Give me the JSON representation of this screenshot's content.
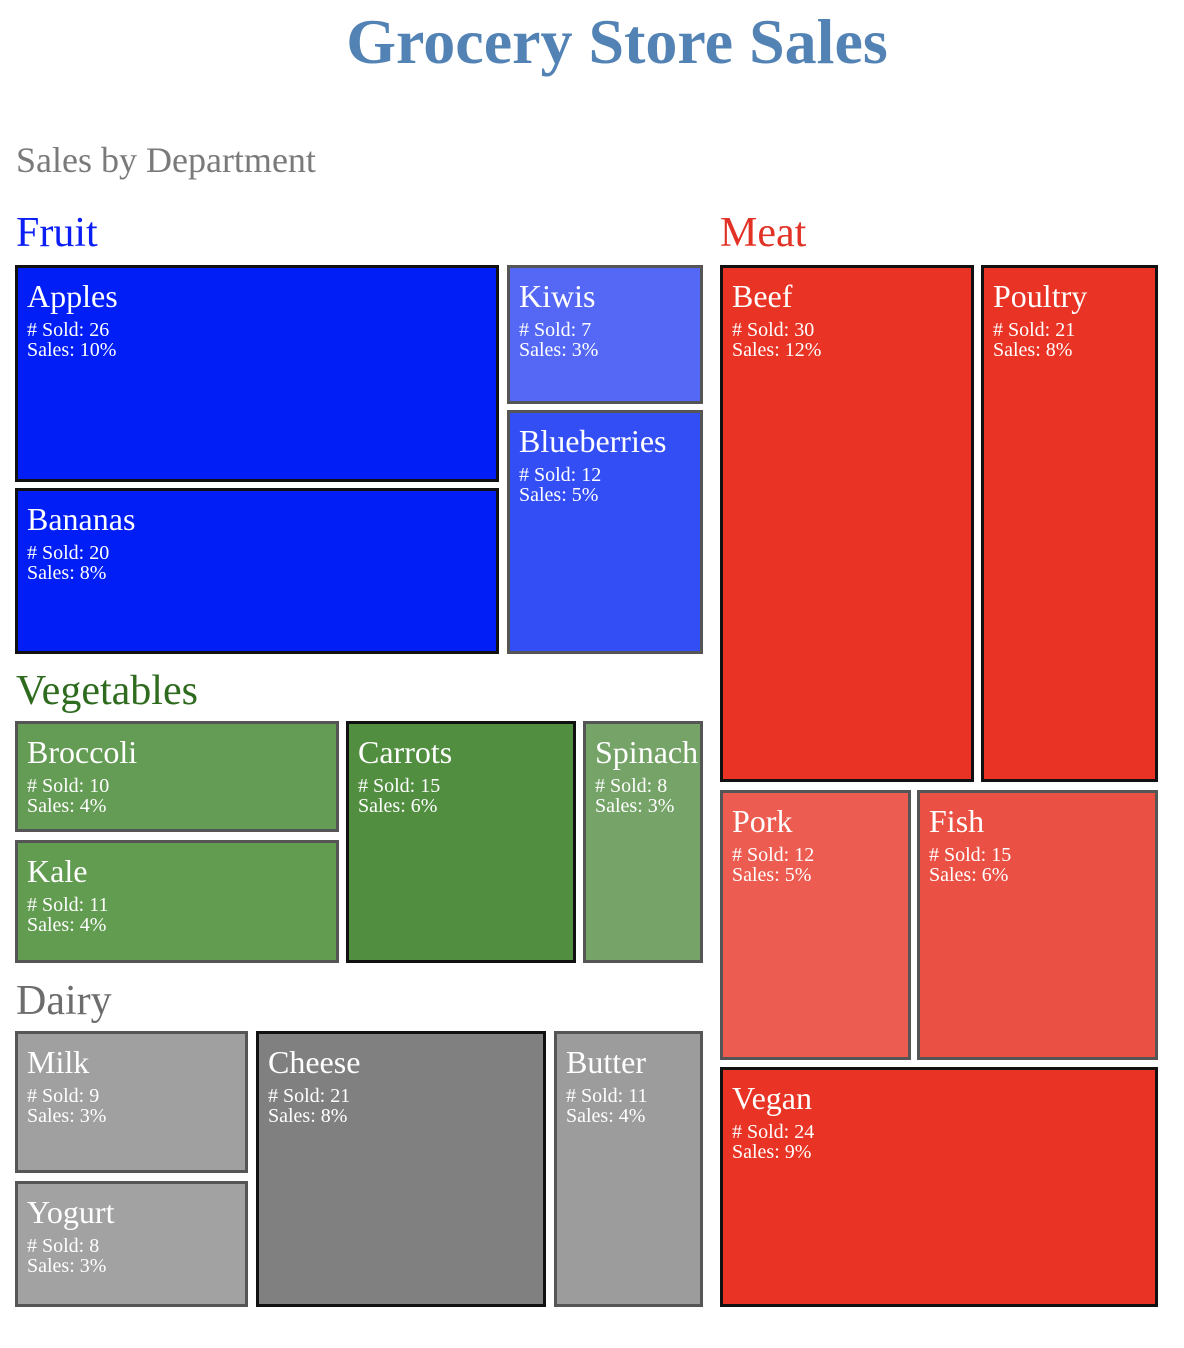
{
  "title": "Grocery Store Sales",
  "subtitle": "Sales by Department",
  "chart_data": {
    "type": "treemap",
    "title": "Grocery Store Sales",
    "subtitle": "Sales by Department",
    "groups": [
      {
        "name": "Fruit",
        "color": "#0a1ef5",
        "items": [
          {
            "name": "Apples",
            "sold": 26,
            "sales_pct": 10,
            "sold_label": "# Sold: 26",
            "sales_label": "Sales: 10%",
            "color": "#001ef5"
          },
          {
            "name": "Bananas",
            "sold": 20,
            "sales_pct": 8,
            "sold_label": "# Sold: 20",
            "sales_label": "Sales: 8%",
            "color": "#001ef5"
          },
          {
            "name": "Kiwis",
            "sold": 7,
            "sales_pct": 3,
            "sold_label": "# Sold: 7",
            "sales_label": "Sales: 3%",
            "color": "#5468f5"
          },
          {
            "name": "Blueberries",
            "sold": 12,
            "sales_pct": 5,
            "sold_label": "# Sold: 12",
            "sales_label": "Sales: 5%",
            "color": "#334ef5"
          }
        ]
      },
      {
        "name": "Vegetables",
        "color": "#2f6b1e",
        "items": [
          {
            "name": "Broccoli",
            "sold": 10,
            "sales_pct": 4,
            "sold_label": "# Sold: 10",
            "sales_label": "Sales: 4%",
            "color": "#659c55"
          },
          {
            "name": "Kale",
            "sold": 11,
            "sales_pct": 4,
            "sold_label": "# Sold: 11",
            "sales_label": "Sales: 4%",
            "color": "#629c50"
          },
          {
            "name": "Carrots",
            "sold": 15,
            "sales_pct": 6,
            "sold_label": "# Sold: 15",
            "sales_label": "Sales: 6%",
            "color": "#518e40"
          },
          {
            "name": "Spinach",
            "sold": 8,
            "sales_pct": 3,
            "sold_label": "# Sold: 8",
            "sales_label": "Sales: 3%",
            "color": "#76a468"
          }
        ]
      },
      {
        "name": "Dairy",
        "color": "#6d6d6d",
        "items": [
          {
            "name": "Milk",
            "sold": 9,
            "sales_pct": 3,
            "sold_label": "# Sold: 9",
            "sales_label": "Sales: 3%",
            "color": "#a0a0a0"
          },
          {
            "name": "Yogurt",
            "sold": 8,
            "sales_pct": 3,
            "sold_label": "# Sold: 8",
            "sales_label": "Sales: 3%",
            "color": "#a2a2a2"
          },
          {
            "name": "Cheese",
            "sold": 21,
            "sales_pct": 8,
            "sold_label": "# Sold: 21",
            "sales_label": "Sales: 8%",
            "color": "#808080"
          },
          {
            "name": "Butter",
            "sold": 11,
            "sales_pct": 4,
            "sold_label": "# Sold: 11",
            "sales_label": "Sales: 4%",
            "color": "#9c9c9c"
          }
        ]
      },
      {
        "name": "Meat",
        "color": "#e23226",
        "items": [
          {
            "name": "Beef",
            "sold": 30,
            "sales_pct": 12,
            "sold_label": "# Sold: 30",
            "sales_label": "Sales: 12%",
            "color": "#e93324"
          },
          {
            "name": "Poultry",
            "sold": 21,
            "sales_pct": 8,
            "sold_label": "# Sold: 21",
            "sales_label": "Sales: 8%",
            "color": "#e93324"
          },
          {
            "name": "Pork",
            "sold": 12,
            "sales_pct": 5,
            "sold_label": "# Sold: 12",
            "sales_label": "Sales: 5%",
            "color": "#ec5c50"
          },
          {
            "name": "Fish",
            "sold": 15,
            "sales_pct": 6,
            "sold_label": "# Sold: 15",
            "sales_label": "Sales: 6%",
            "color": "#eb5044"
          },
          {
            "name": "Vegan",
            "sold": 24,
            "sales_pct": 9,
            "sold_label": "# Sold: 24",
            "sales_label": "Sales: 9%",
            "color": "#e93324"
          }
        ]
      }
    ]
  }
}
